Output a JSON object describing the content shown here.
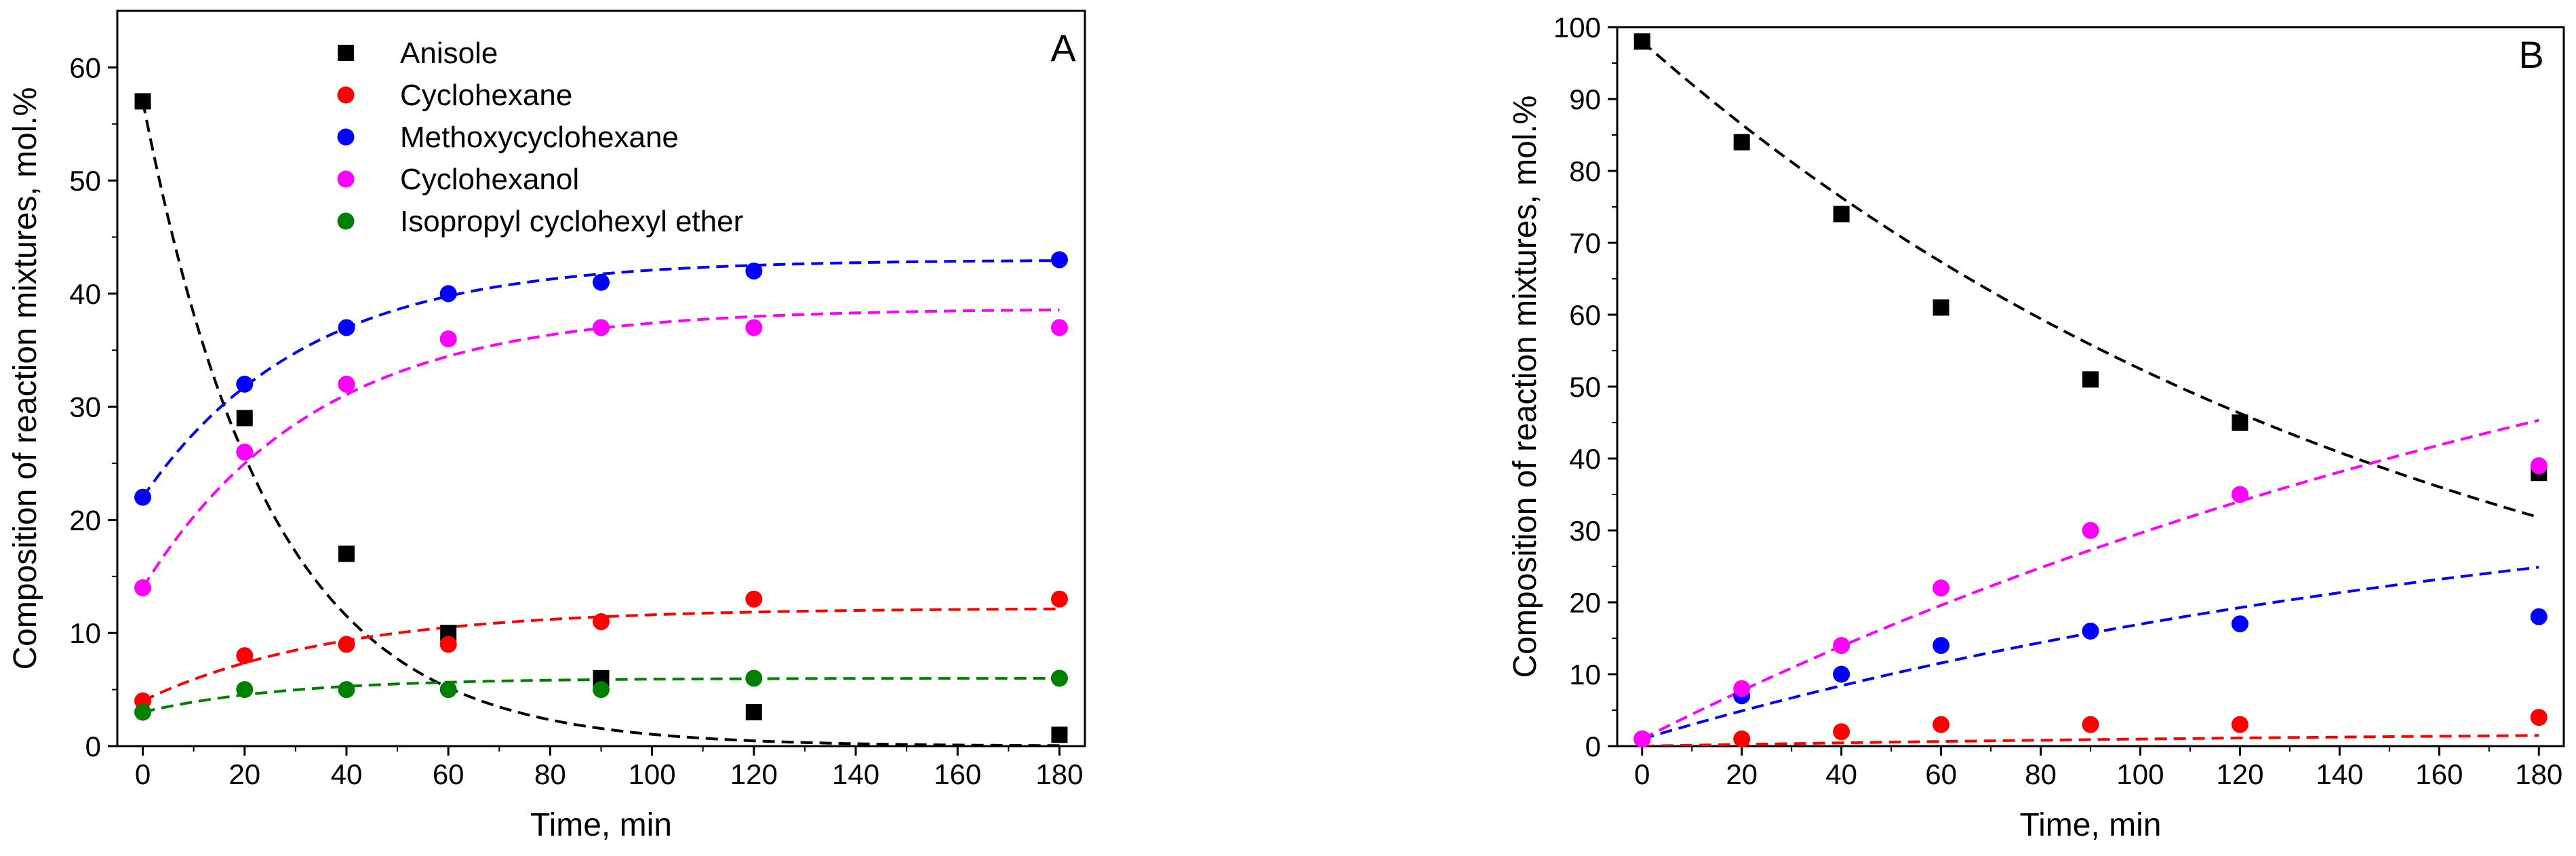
{
  "chart_data": [
    {
      "type": "scatter",
      "panel_label": "A",
      "xlabel": "Time, min",
      "ylabel": "Composition of reaction mixtures, mol.%",
      "xlim": [
        -5,
        185
      ],
      "ylim": [
        0,
        65
      ],
      "xticks": [
        0,
        20,
        40,
        60,
        80,
        100,
        120,
        140,
        160,
        180
      ],
      "yticks": [
        0,
        10,
        20,
        30,
        40,
        50,
        60
      ],
      "legend_position": "top-center",
      "series": [
        {
          "name": "Anisole",
          "marker": "square",
          "color": "#000000",
          "x": [
            0,
            20,
            40,
            60,
            90,
            120,
            180
          ],
          "y": [
            57,
            29,
            17,
            10,
            6,
            3,
            1
          ],
          "fit": {
            "model": "exponential",
            "y0": 0,
            "A": 57,
            "t": 25
          }
        },
        {
          "name": "Cyclohexane",
          "marker": "circle",
          "color": "#ff0000",
          "x": [
            0,
            20,
            40,
            60,
            90,
            120,
            180
          ],
          "y": [
            4,
            8,
            9,
            9,
            11,
            13,
            13
          ],
          "fit": {
            "model": "exponential",
            "y0": 12.2,
            "A": -8.2,
            "t": 38
          }
        },
        {
          "name": "Methoxycyclohexane",
          "marker": "circle",
          "color": "#0000ff",
          "x": [
            0,
            20,
            40,
            60,
            90,
            120,
            180
          ],
          "y": [
            22,
            32,
            37,
            40,
            41,
            42,
            43
          ],
          "fit": {
            "model": "exponential",
            "y0": 43,
            "A": -21,
            "t": 32
          }
        },
        {
          "name": "Cyclohexanol",
          "marker": "circle",
          "color": "#ff00ff",
          "x": [
            0,
            20,
            40,
            60,
            90,
            120,
            180
          ],
          "y": [
            14,
            26,
            32,
            36,
            37,
            37,
            37
          ],
          "fit": {
            "model": "exponential",
            "y0": 38.7,
            "A": -24.7,
            "t": 34
          }
        },
        {
          "name": "Isopropyl cyclohexyl ether",
          "marker": "circle",
          "color": "#008000",
          "x": [
            0,
            20,
            40,
            60,
            90,
            120,
            180
          ],
          "y": [
            3,
            5,
            5,
            5,
            5,
            6,
            6
          ],
          "fit": {
            "model": "exponential",
            "y0": 6,
            "A": -3,
            "t": 28
          }
        }
      ]
    },
    {
      "type": "scatter",
      "panel_label": "B",
      "xlabel": "Time, min",
      "ylabel": "Composition of reaction mixtures, mol.%",
      "xlim": [
        -5,
        185
      ],
      "ylim": [
        0,
        100
      ],
      "xticks": [
        0,
        20,
        40,
        60,
        80,
        100,
        120,
        140,
        160,
        180
      ],
      "yticks": [
        0,
        10,
        20,
        30,
        40,
        50,
        60,
        70,
        80,
        90,
        100
      ],
      "series": [
        {
          "name": "Anisole",
          "marker": "square",
          "color": "#000000",
          "x": [
            0,
            20,
            40,
            60,
            90,
            120,
            180
          ],
          "y": [
            98,
            84,
            74,
            61,
            51,
            45,
            38
          ],
          "fit": {
            "model": "exponential",
            "y0": 0,
            "A": 98,
            "t": 160
          }
        },
        {
          "name": "Cyclohexane",
          "marker": "circle",
          "color": "#ff0000",
          "x": [
            0,
            20,
            40,
            60,
            90,
            120,
            180
          ],
          "y": [
            1,
            1,
            2,
            3,
            3,
            3,
            4
          ],
          "fit": {
            "model": "exponential",
            "y0": 2.5,
            "A": -2.5,
            "t": 200
          }
        },
        {
          "name": "Methoxycyclohexane",
          "marker": "circle",
          "color": "#0000ff",
          "x": [
            0,
            20,
            40,
            60,
            90,
            120,
            180
          ],
          "y": [
            1,
            7,
            10,
            14,
            16,
            17,
            18
          ],
          "fit": {
            "model": "exponential",
            "y0": 40,
            "A": -39,
            "t": 190
          }
        },
        {
          "name": "Cyclohexanol",
          "marker": "circle",
          "color": "#ff00ff",
          "x": [
            0,
            20,
            40,
            60,
            90,
            120,
            180
          ],
          "y": [
            1,
            8,
            14,
            22,
            30,
            35,
            39
          ],
          "fit": {
            "model": "exponential",
            "y0": 85,
            "A": -84,
            "t": 240
          }
        }
      ]
    }
  ]
}
